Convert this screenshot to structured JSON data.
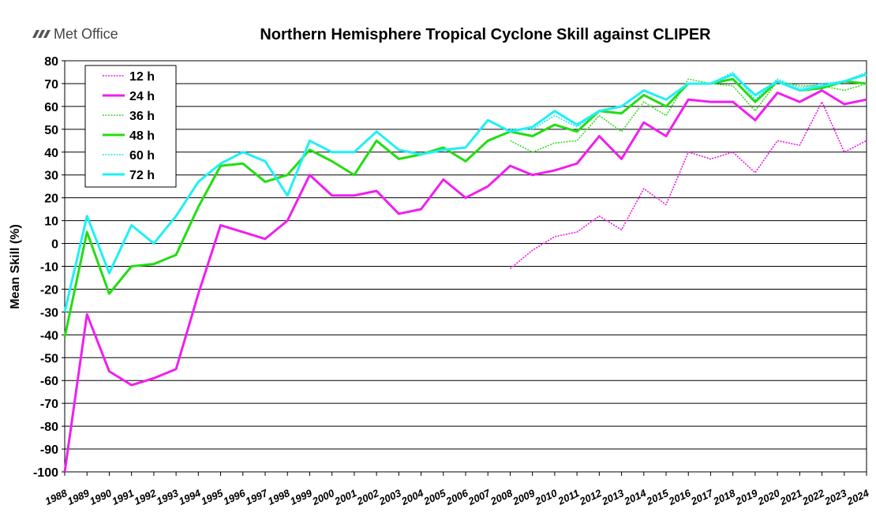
{
  "chart_data": {
    "type": "line",
    "logo": "Met Office",
    "title": "Northern Hemisphere Tropical Cyclone Skill against CLIPER",
    "y_label": "Mean Skill (%)",
    "categories": [
      "1988",
      "1989",
      "1990",
      "1991",
      "1992",
      "1993",
      "1994",
      "1995",
      "1996",
      "1997",
      "1998",
      "1999",
      "2000",
      "2001",
      "2002",
      "2003",
      "2004",
      "2005",
      "2006",
      "2007",
      "2008",
      "2009",
      "2010",
      "2011",
      "2012",
      "2013",
      "2014",
      "2015",
      "2016",
      "2017",
      "2018",
      "2019",
      "2020",
      "2021",
      "2022",
      "2023",
      "2024"
    ],
    "ylim": [
      -100,
      80
    ],
    "yticks": [
      -100,
      -90,
      -80,
      -70,
      -60,
      -50,
      -40,
      -30,
      -20,
      -10,
      0,
      10,
      20,
      30,
      40,
      50,
      60,
      70,
      80
    ],
    "grid": true,
    "legend": "top-left",
    "series": [
      {
        "name": "12 h",
        "color": "#e619e6",
        "dotted": true,
        "values": [
          null,
          null,
          null,
          null,
          null,
          null,
          null,
          null,
          null,
          null,
          null,
          null,
          null,
          null,
          null,
          null,
          null,
          null,
          null,
          null,
          -11,
          -3,
          3,
          5,
          12,
          6,
          24,
          17,
          40,
          37,
          40,
          31,
          45,
          43,
          62,
          40,
          45
        ]
      },
      {
        "name": "24 h",
        "color": "#f01ef0",
        "dotted": false,
        "values": [
          -100,
          -31,
          -56,
          -62,
          -59,
          -55,
          -22,
          8,
          5,
          2,
          10,
          30,
          21,
          21,
          23,
          13,
          15,
          28,
          20,
          25,
          34,
          30,
          32,
          35,
          47,
          37,
          53,
          47,
          63,
          62,
          62,
          54,
          66,
          62,
          67,
          61,
          63
        ]
      },
      {
        "name": "36 h",
        "color": "#33dd22",
        "dotted": true,
        "values": [
          null,
          null,
          null,
          null,
          null,
          null,
          null,
          null,
          null,
          null,
          null,
          null,
          null,
          null,
          null,
          null,
          null,
          null,
          null,
          null,
          45,
          40,
          44,
          45,
          56,
          49,
          62,
          56,
          72,
          70,
          69,
          58,
          71,
          69,
          69,
          67,
          70
        ]
      },
      {
        "name": "48 h",
        "color": "#22dd11",
        "dotted": false,
        "values": [
          -41,
          5,
          -22,
          -10,
          -9,
          -5,
          16,
          34,
          35,
          27,
          30,
          41,
          36,
          30,
          45,
          37,
          39,
          42,
          36,
          45,
          49,
          47,
          52,
          49,
          58,
          57,
          65,
          60,
          70,
          70,
          72,
          62,
          71,
          67,
          68,
          71,
          70
        ]
      },
      {
        "name": "60 h",
        "color": "#22e6ee",
        "dotted": true,
        "values": [
          null,
          null,
          null,
          null,
          null,
          null,
          null,
          null,
          null,
          null,
          null,
          null,
          null,
          null,
          null,
          null,
          null,
          null,
          null,
          null,
          50,
          50,
          56,
          51,
          58,
          60,
          67,
          63,
          70,
          70,
          75,
          63,
          72,
          68,
          70,
          71,
          75
        ]
      },
      {
        "name": "72 h",
        "color": "#1ef0f5",
        "dotted": false,
        "values": [
          -30,
          12,
          -13,
          8,
          0,
          12,
          27,
          35,
          40,
          36,
          21,
          45,
          40,
          40,
          49,
          41,
          39,
          41,
          42,
          54,
          49,
          51,
          58,
          52,
          58,
          60,
          67,
          63,
          70,
          70,
          74,
          65,
          71,
          67,
          69,
          71,
          74
        ]
      }
    ]
  }
}
